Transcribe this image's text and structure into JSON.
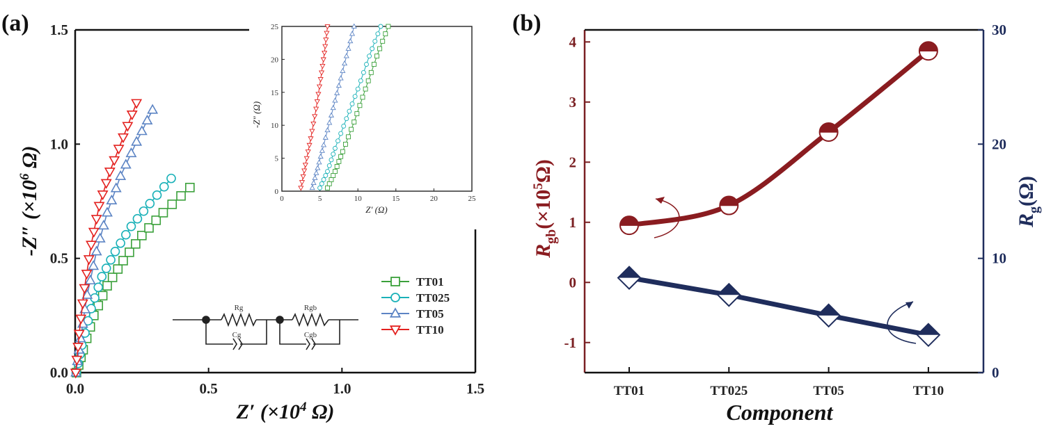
{
  "panel_a": {
    "label": "(a)",
    "xlabel_main": "Z′ (×10",
    "xlabel_exp": "4",
    "xlabel_unit": " Ω)",
    "ylabel_main": "-Z″ (×10",
    "ylabel_exp": "6",
    "ylabel_unit": " Ω)",
    "inset_xlabel": "Z′ (Ω)",
    "inset_ylabel": "-Z″ (Ω)",
    "circuit_labels": [
      "Rg",
      "Cg",
      "Rgb",
      "Cgb"
    ]
  },
  "panel_b": {
    "label": "(b)",
    "xlabel": "Component",
    "ylabel_left_main": "R",
    "ylabel_left_sub": "gb",
    "ylabel_left_unit": "(×10",
    "ylabel_left_exp": "5",
    "ylabel_left_end": "Ω)",
    "ylabel_right_main": "R",
    "ylabel_right_sub": "g",
    "ylabel_right_unit": "(Ω)"
  },
  "colors": {
    "TT01": "#3aa03a",
    "TT025": "#1ab1b8",
    "TT05": "#5c84c4",
    "TT10": "#e3211f",
    "rgb": "#8a1c20",
    "rg": "#1f2d5c"
  },
  "chart_data": [
    {
      "type": "scatter",
      "xlabel": "Z′ (×10^4 Ω)",
      "ylabel": "-Z″ (×10^6 Ω)",
      "xlim": [
        0,
        1.5
      ],
      "ylim": [
        0,
        1.5
      ],
      "xticks": [
        "0.0",
        "0.5",
        "1.0",
        "1.5"
      ],
      "yticks": [
        "0.0",
        "0.5",
        "1.0",
        "1.5"
      ],
      "legend_placement": "lower-right",
      "series": [
        {
          "name": "TT01",
          "marker": "square",
          "x": [
            0.005,
            0.03,
            0.07,
            0.12,
            0.18,
            0.25,
            0.33,
            0.43
          ],
          "y": [
            0.0,
            0.1,
            0.25,
            0.38,
            0.49,
            0.6,
            0.7,
            0.81
          ]
        },
        {
          "name": "TT025",
          "marker": "circle",
          "x": [
            0.004,
            0.025,
            0.06,
            0.1,
            0.15,
            0.21,
            0.28,
            0.36
          ],
          "y": [
            0.0,
            0.12,
            0.28,
            0.42,
            0.53,
            0.64,
            0.74,
            0.85
          ]
        },
        {
          "name": "TT05",
          "marker": "triangle-up",
          "x": [
            0.003,
            0.02,
            0.045,
            0.08,
            0.12,
            0.17,
            0.23,
            0.29
          ],
          "y": [
            0.0,
            0.15,
            0.34,
            0.53,
            0.7,
            0.86,
            1.01,
            1.15
          ]
        },
        {
          "name": "TT10",
          "marker": "triangle-down",
          "x": [
            0.002,
            0.015,
            0.035,
            0.06,
            0.09,
            0.13,
            0.18,
            0.23
          ],
          "y": [
            0.0,
            0.17,
            0.37,
            0.56,
            0.73,
            0.88,
            1.03,
            1.18
          ]
        }
      ]
    },
    {
      "type": "scatter",
      "subtype": "inset",
      "xlabel": "Z′ (Ω)",
      "ylabel": "-Z″ (Ω)",
      "xlim": [
        0,
        25
      ],
      "ylim": [
        0,
        25
      ],
      "xticks": [
        "0",
        "5",
        "10",
        "15",
        "20",
        "25"
      ],
      "yticks": [
        "0",
        "5",
        "10",
        "15",
        "20",
        "25"
      ],
      "series": [
        {
          "name": "TT01",
          "marker": "square",
          "x": [
            6.0,
            7.0,
            8.0,
            9.5,
            11.0,
            12.5,
            14.0
          ],
          "y": [
            0.5,
            3.0,
            6.0,
            10.5,
            15.5,
            20.5,
            25.0
          ]
        },
        {
          "name": "TT025",
          "marker": "circle",
          "x": [
            5.0,
            6.0,
            7.0,
            8.5,
            10.0,
            11.5,
            13.0
          ],
          "y": [
            0.5,
            3.0,
            6.5,
            11.0,
            15.5,
            20.5,
            25.0
          ]
        },
        {
          "name": "TT05",
          "marker": "triangle-up",
          "x": [
            4.0,
            4.7,
            5.5,
            6.5,
            7.5,
            8.5,
            9.5
          ],
          "y": [
            0.5,
            3.5,
            7.0,
            11.5,
            16.0,
            20.5,
            25.0
          ]
        },
        {
          "name": "TT10",
          "marker": "triangle-down",
          "x": [
            2.5,
            3.1,
            3.8,
            4.5,
            5.1,
            5.6,
            6.0
          ],
          "y": [
            0.5,
            4.0,
            8.0,
            12.5,
            17.0,
            21.0,
            25.0
          ]
        }
      ]
    },
    {
      "type": "line",
      "xlabel": "Component",
      "categories": [
        "TT01",
        "TT025",
        "TT05",
        "TT10"
      ],
      "left_axis": {
        "label": "Rgb (×10^5 Ω)",
        "ylim": [
          -1.5,
          4.2
        ],
        "ticks": [
          "-1",
          "0",
          "1",
          "2",
          "3",
          "4"
        ]
      },
      "right_axis": {
        "label": "Rg (Ω)",
        "ylim": [
          0,
          30
        ],
        "ticks": [
          "0",
          "10",
          "20",
          "30"
        ]
      },
      "series": [
        {
          "name": "Rgb",
          "axis": "left",
          "marker": "half-filled-circle",
          "values": [
            0.95,
            1.28,
            2.5,
            3.85
          ]
        },
        {
          "name": "Rg",
          "axis": "right",
          "marker": "half-filled-diamond",
          "values": [
            8.3,
            6.8,
            5.0,
            3.3
          ]
        }
      ]
    }
  ]
}
